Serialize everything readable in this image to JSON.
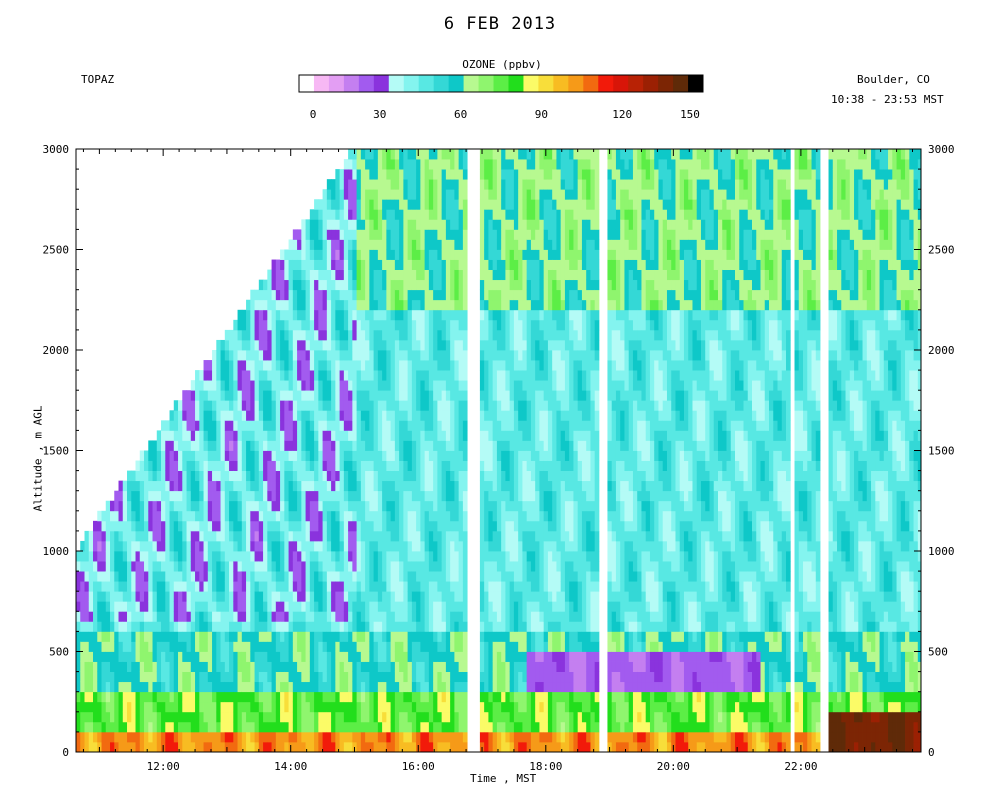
{
  "header": {
    "title": "6 FEB 2013",
    "site": "TOPAZ",
    "location": "Boulder, CO",
    "time_range": "10:38 - 23:53 MST"
  },
  "colorbar": {
    "title": "OZONE (ppbv)",
    "colors": [
      "#ffffff",
      "#f7b8f4",
      "#e39ef3",
      "#c47ff0",
      "#a25bef",
      "#8a33dd",
      "#b4fbf6",
      "#84f4ef",
      "#58e8e3",
      "#34d8d6",
      "#0ec8c8",
      "#b7f990",
      "#8ff56e",
      "#5cee46",
      "#22de1c",
      "#fbfb67",
      "#f8de3a",
      "#f8bc22",
      "#f69a18",
      "#f26a10",
      "#f21a0a",
      "#d81508",
      "#b82205",
      "#9b2003",
      "#7c2504",
      "#5f2a08",
      "#000000"
    ],
    "min": 0,
    "max": 150,
    "tick_labels": [
      "0",
      "30",
      "60",
      "90",
      "120",
      "150"
    ]
  },
  "chart_data": {
    "type": "heatmap",
    "title": "6 FEB 2013",
    "xlabel": "Time , MST",
    "ylabel": "Altitude , m AGL",
    "x_ticks": [
      "12:00",
      "14:00",
      "16:00",
      "18:00",
      "20:00",
      "22:00"
    ],
    "y_ticks": [
      "0",
      "500",
      "1000",
      "1500",
      "2000",
      "2500",
      "3000"
    ],
    "xlim": [
      "10:38",
      "23:53"
    ],
    "ylim": [
      0,
      3000
    ],
    "grid": false,
    "variable": "OZONE (ppbv)",
    "data_gaps_time": [
      [
        "16:45",
        "16:55"
      ],
      [
        "18:50",
        "18:58"
      ],
      [
        "21:48",
        "21:53"
      ],
      [
        "22:15",
        "22:25"
      ]
    ],
    "layers": [
      {
        "altitude_range": [
          0,
          100
        ],
        "typical_ozone": [
          90,
          120
        ]
      },
      {
        "altitude_range": [
          100,
          300
        ],
        "typical_ozone": [
          60,
          90
        ]
      },
      {
        "altitude_range": [
          300,
          600
        ],
        "typical_ozone": [
          30,
          60
        ]
      },
      {
        "altitude_range": [
          600,
          2200
        ],
        "typical_ozone": [
          30,
          60
        ]
      },
      {
        "altitude_range": [
          2200,
          3000
        ],
        "typical_ozone": [
          50,
          75
        ]
      }
    ],
    "notable_features": [
      {
        "label": "low-ozone layer",
        "time_range": [
          "17:40",
          "21:20"
        ],
        "altitude_range": [
          300,
          450
        ],
        "ozone": [
          15,
          30
        ]
      },
      {
        "label": "high-ozone surface layer",
        "time_range": [
          "22:20",
          "23:50"
        ],
        "altitude_range": [
          0,
          150
        ],
        "ozone": [
          130,
          150
        ]
      }
    ]
  }
}
